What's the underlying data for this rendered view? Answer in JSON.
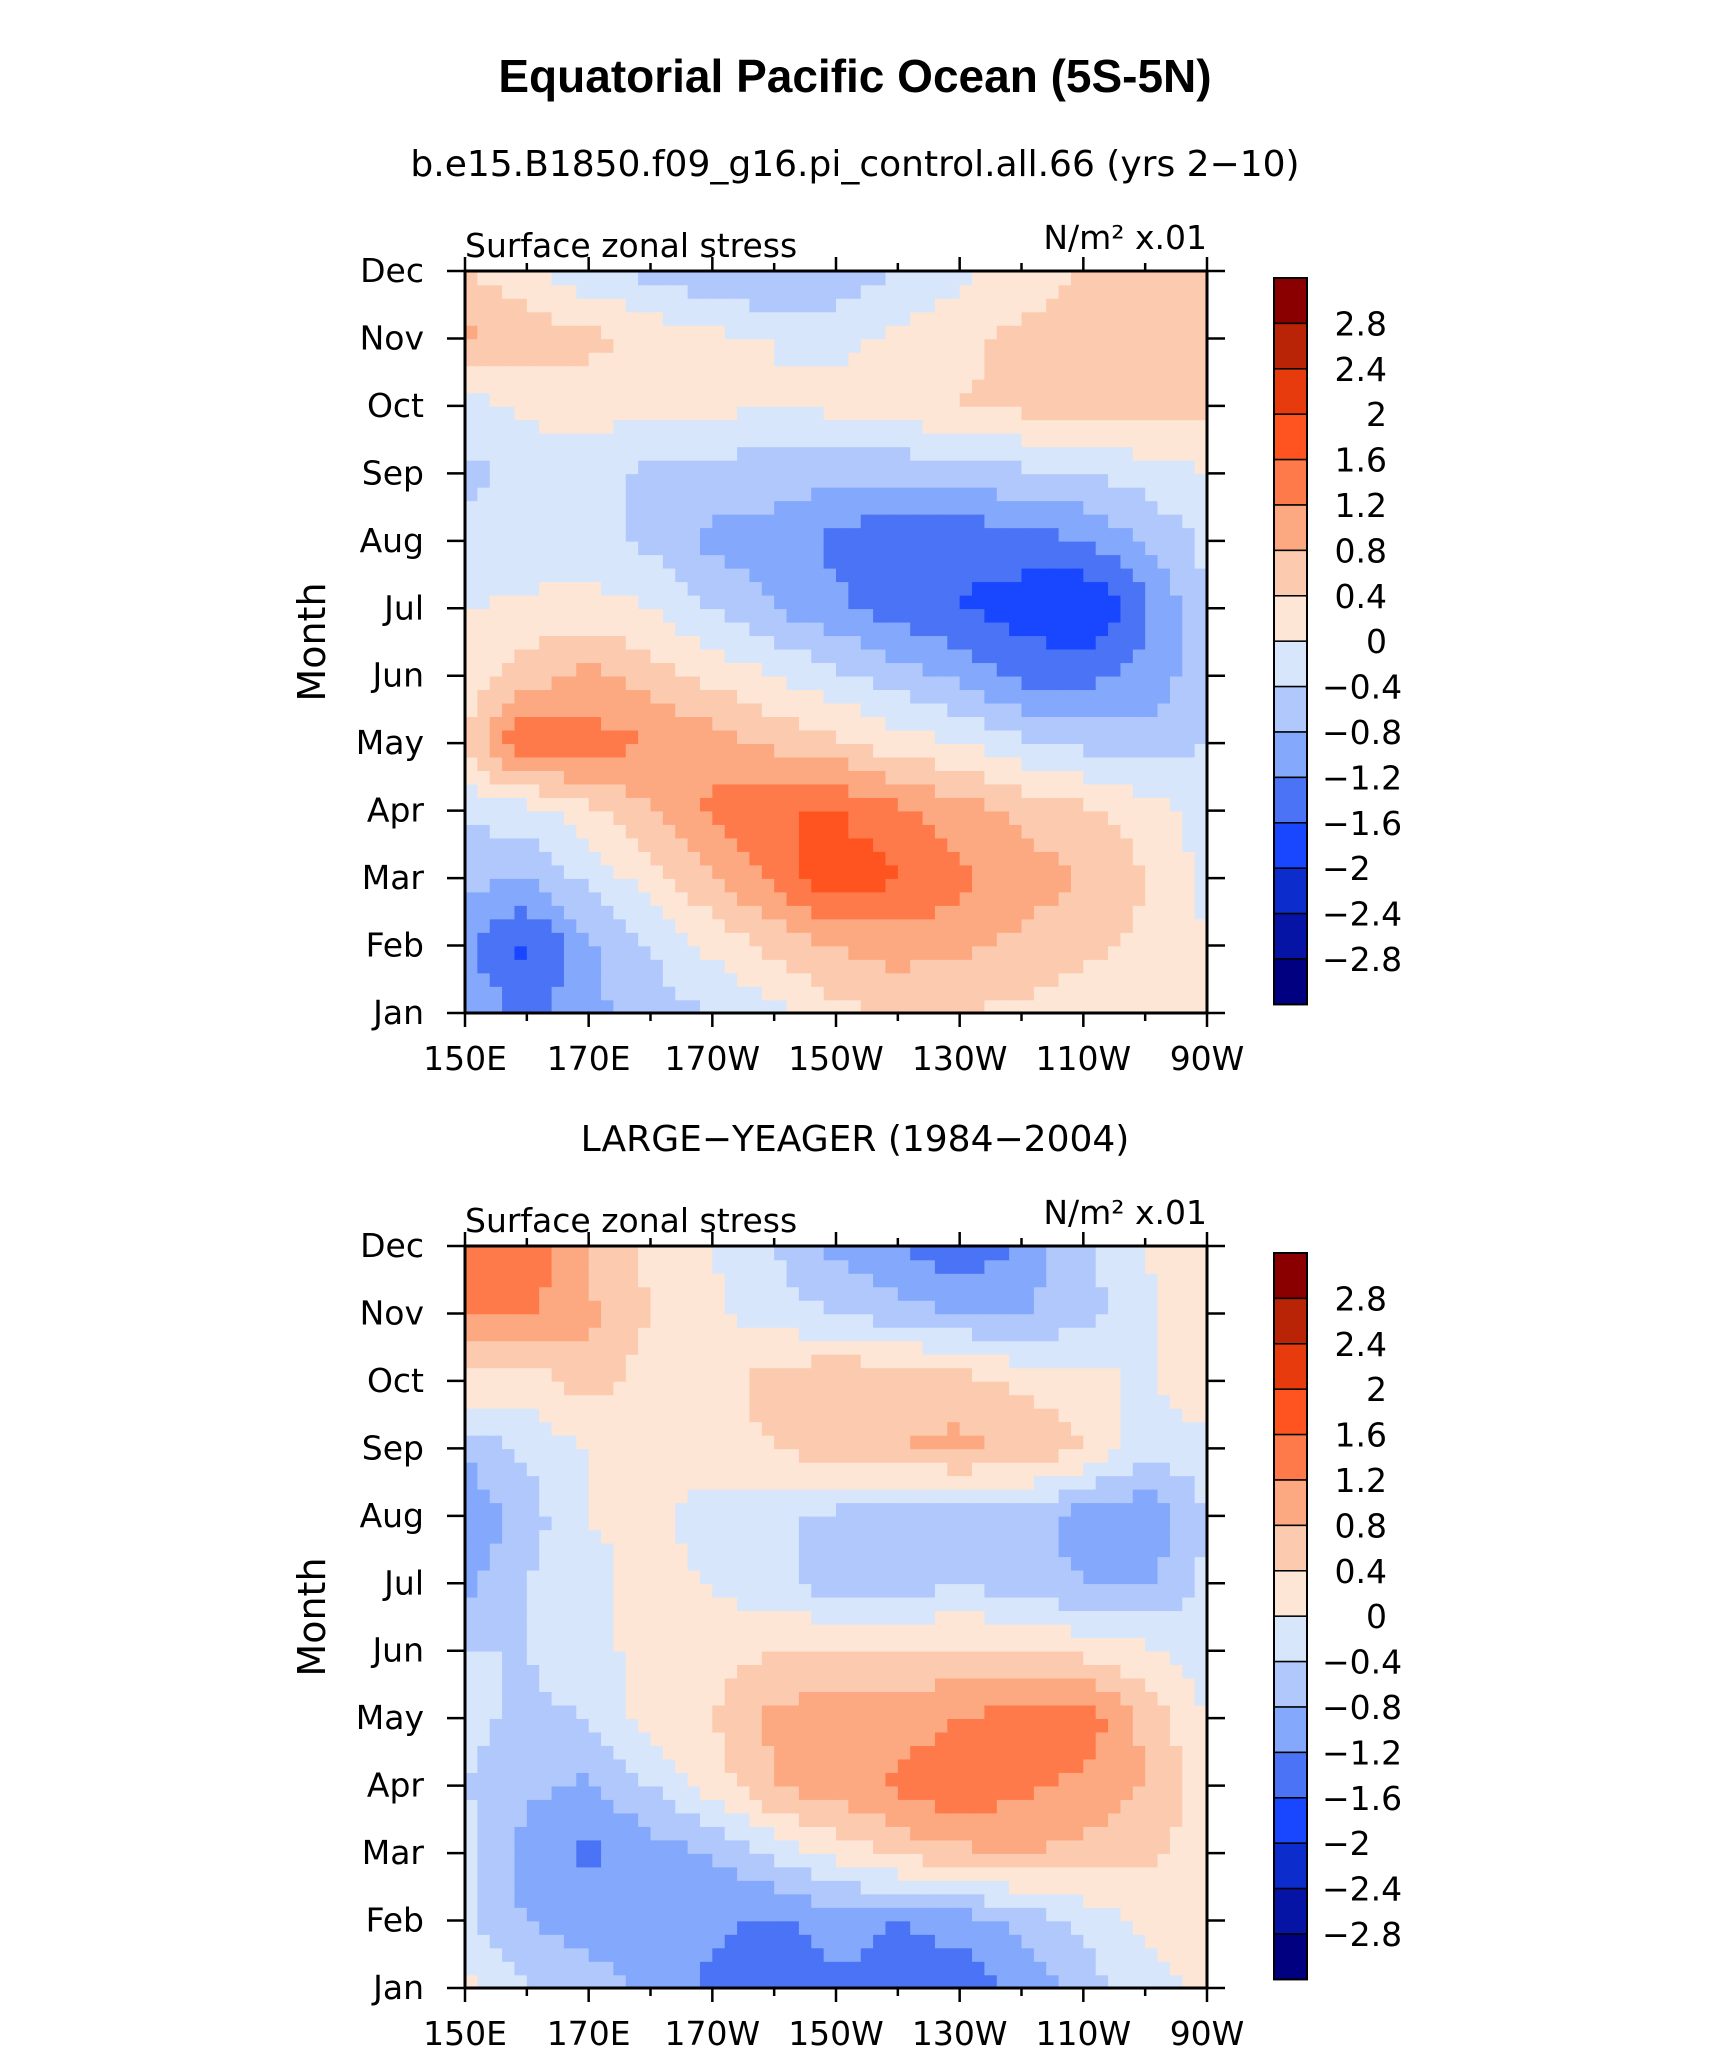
{
  "title": "Equatorial Pacific Ocean (5S-5N)",
  "panels": [
    {
      "subtitle": "b.e15.B1850.f09_g16.pi_control.all.66 (yrs 2−10)",
      "left_label": "Surface zonal stress",
      "units": "N/m² x.01"
    },
    {
      "subtitle": "LARGE−YEAGER (1984−2004)",
      "left_label": "Surface zonal stress",
      "units": "N/m² x.01"
    }
  ],
  "chart_data": [
    {
      "type": "heatmap",
      "title": "b.e15.B1850.f09_g16.pi_control.all.66 (yrs 2−10)",
      "variable": "Surface zonal stress",
      "units": "N/m² x.01",
      "xlabel": "",
      "ylabel": "Month",
      "x_ticks": [
        "150E",
        "170E",
        "170W",
        "150W",
        "130W",
        "110W",
        "90W"
      ],
      "x_tick_lons": [
        150,
        170,
        190,
        210,
        230,
        250,
        270
      ],
      "y_ticks": [
        "Jan",
        "Feb",
        "Mar",
        "Apr",
        "May",
        "Jun",
        "Jul",
        "Aug",
        "Sep",
        "Oct",
        "Nov",
        "Dec"
      ],
      "xlim": [
        150,
        270
      ],
      "ylim": [
        1,
        12
      ],
      "lon_grid": [
        150,
        160,
        170,
        180,
        190,
        200,
        210,
        220,
        230,
        240,
        250,
        260,
        270
      ],
      "values": [
        [
          -0.9,
          -1.3,
          -0.9,
          -0.6,
          -0.4,
          -0.1,
          0.3,
          0.4,
          0.4,
          0.3,
          0.2,
          0.1,
          0.0
        ],
        [
          -1.1,
          -1.7,
          -0.9,
          -0.4,
          0.1,
          0.5,
          0.8,
          1.0,
          0.9,
          0.7,
          0.5,
          0.3,
          0.0
        ],
        [
          -0.7,
          -0.8,
          -0.3,
          0.2,
          0.8,
          1.3,
          1.9,
          1.6,
          1.3,
          1.0,
          0.8,
          0.4,
          -0.1
        ],
        [
          -0.3,
          -0.2,
          0.3,
          0.8,
          1.3,
          1.6,
          1.6,
          1.3,
          1.0,
          0.7,
          0.5,
          0.2,
          -0.2
        ],
        [
          0.5,
          1.7,
          1.4,
          1.2,
          1.0,
          0.7,
          0.5,
          0.2,
          0.0,
          -0.3,
          -0.5,
          -0.6,
          -0.4
        ],
        [
          0.1,
          0.6,
          0.9,
          0.6,
          0.3,
          0.0,
          -0.3,
          -0.6,
          -0.9,
          -1.3,
          -1.3,
          -1.1,
          -0.5
        ],
        [
          0.0,
          0.1,
          0.2,
          0.0,
          -0.4,
          -0.8,
          -1.1,
          -1.4,
          -1.6,
          -1.8,
          -2.1,
          -1.3,
          -0.4
        ],
        [
          -0.3,
          -0.3,
          -0.3,
          -0.5,
          -0.9,
          -1.0,
          -1.3,
          -1.6,
          -1.5,
          -1.4,
          -1.2,
          -0.8,
          -0.3
        ],
        [
          -0.5,
          -0.3,
          -0.2,
          -0.5,
          -0.6,
          -0.6,
          -0.7,
          -0.7,
          -0.6,
          -0.5,
          -0.4,
          -0.2,
          0.0
        ],
        [
          -0.2,
          0.1,
          0.2,
          0.1,
          0.1,
          0.0,
          0.1,
          0.2,
          0.4,
          0.5,
          0.6,
          0.6,
          0.5
        ],
        [
          0.9,
          0.7,
          0.5,
          0.3,
          0.1,
          0.0,
          -0.1,
          0.1,
          0.3,
          0.5,
          0.6,
          0.7,
          0.7
        ],
        [
          0.4,
          0.1,
          -0.3,
          -0.5,
          -0.7,
          -0.9,
          -0.7,
          -0.4,
          -0.1,
          0.2,
          0.4,
          0.5,
          0.6
        ]
      ],
      "levels": [
        -2.8,
        -2.4,
        -2.0,
        -1.6,
        -1.2,
        -0.8,
        -0.4,
        0,
        0.4,
        0.8,
        1.2,
        1.6,
        2.0,
        2.4,
        2.8
      ],
      "colors": [
        "#000080",
        "#0614a6",
        "#0c2ccc",
        "#1946ff",
        "#4a73f5",
        "#83a8fc",
        "#b0c8fc",
        "#d7e6fb",
        "#fde6d6",
        "#fccaae",
        "#fca981",
        "#ff7a4a",
        "#ff541f",
        "#e83b0d",
        "#b92406",
        "#8a0000"
      ],
      "colorbar_labels": [
        "2.8",
        "2.4",
        "2",
        "1.6",
        "1.2",
        "0.8",
        "0.4",
        "0",
        "−0.4",
        "−0.8",
        "−1.2",
        "−1.6",
        "−2",
        "−2.4",
        "−2.8"
      ]
    },
    {
      "type": "heatmap",
      "title": "LARGE−YEAGER (1984−2004)",
      "variable": "Surface zonal stress",
      "units": "N/m² x.01",
      "xlabel": "",
      "ylabel": "Month",
      "x_ticks": [
        "150E",
        "170E",
        "170W",
        "150W",
        "130W",
        "110W",
        "90W"
      ],
      "x_tick_lons": [
        150,
        170,
        190,
        210,
        230,
        250,
        270
      ],
      "y_ticks": [
        "Jan",
        "Feb",
        "Mar",
        "Apr",
        "May",
        "Jun",
        "Jul",
        "Aug",
        "Sep",
        "Oct",
        "Nov",
        "Dec"
      ],
      "xlim": [
        150,
        270
      ],
      "ylim": [
        1,
        12
      ],
      "lon_grid": [
        150,
        160,
        170,
        180,
        190,
        200,
        210,
        220,
        230,
        240,
        250,
        260,
        270
      ],
      "values": [
        [
          0.1,
          -0.4,
          -0.6,
          -0.9,
          -1.3,
          -1.6,
          -1.3,
          -1.4,
          -1.5,
          -1.1,
          -0.6,
          -0.2,
          0.1
        ],
        [
          -0.3,
          -0.8,
          -1.0,
          -0.9,
          -1.1,
          -1.3,
          -1.0,
          -1.2,
          -1.0,
          -0.7,
          -0.3,
          0.1,
          0.4
        ],
        [
          -0.2,
          -1.0,
          -1.3,
          -1.0,
          -0.8,
          -0.3,
          0.1,
          0.5,
          0.7,
          0.8,
          0.7,
          0.5,
          0.2
        ],
        [
          -0.4,
          -0.7,
          -0.9,
          -0.4,
          0.2,
          0.8,
          1.0,
          1.3,
          1.5,
          1.3,
          1.1,
          0.8,
          0.2
        ],
        [
          -0.3,
          -0.5,
          -0.4,
          0.2,
          0.4,
          0.9,
          1.0,
          1.0,
          1.2,
          1.4,
          1.5,
          0.7,
          0.0
        ],
        [
          -0.4,
          -0.4,
          -0.1,
          0.1,
          0.2,
          0.4,
          0.5,
          0.4,
          0.5,
          0.4,
          0.3,
          0.1,
          -0.2
        ],
        [
          -0.9,
          -0.4,
          -0.1,
          0.1,
          0.0,
          -0.3,
          -0.6,
          -0.6,
          -0.4,
          -0.6,
          -0.8,
          -0.9,
          -0.3
        ],
        [
          -1.2,
          -0.6,
          0.0,
          0.1,
          -0.2,
          -0.3,
          -0.5,
          -0.8,
          -0.7,
          -0.6,
          -1.0,
          -1.1,
          -0.4
        ],
        [
          -0.7,
          -0.3,
          0.0,
          0.1,
          0.2,
          0.4,
          0.6,
          0.8,
          0.9,
          0.7,
          0.4,
          -0.3,
          -0.2
        ],
        [
          0.3,
          0.2,
          0.6,
          0.2,
          0.2,
          0.6,
          0.8,
          0.7,
          0.6,
          0.3,
          0.2,
          -0.1,
          0.4
        ],
        [
          1.2,
          1.2,
          0.9,
          0.4,
          0.1,
          -0.2,
          -0.4,
          -0.6,
          -0.8,
          -0.8,
          -0.6,
          -0.1,
          0.3
        ],
        [
          1.5,
          1.6,
          0.7,
          0.3,
          0.0,
          -0.4,
          -0.9,
          -1.2,
          -1.6,
          -1.1,
          -0.5,
          0.0,
          0.3
        ]
      ],
      "levels": [
        -2.8,
        -2.4,
        -2.0,
        -1.6,
        -1.2,
        -0.8,
        -0.4,
        0,
        0.4,
        0.8,
        1.2,
        1.6,
        2.0,
        2.4,
        2.8
      ],
      "colors": [
        "#000080",
        "#0614a6",
        "#0c2ccc",
        "#1946ff",
        "#4a73f5",
        "#83a8fc",
        "#b0c8fc",
        "#d7e6fb",
        "#fde6d6",
        "#fccaae",
        "#fca981",
        "#ff7a4a",
        "#ff541f",
        "#e83b0d",
        "#b92406",
        "#8a0000"
      ],
      "colorbar_labels": [
        "2.8",
        "2.4",
        "2",
        "1.6",
        "1.2",
        "0.8",
        "0.4",
        "0",
        "−0.4",
        "−0.8",
        "−1.2",
        "−1.6",
        "−2",
        "−2.4",
        "−2.8"
      ]
    }
  ]
}
